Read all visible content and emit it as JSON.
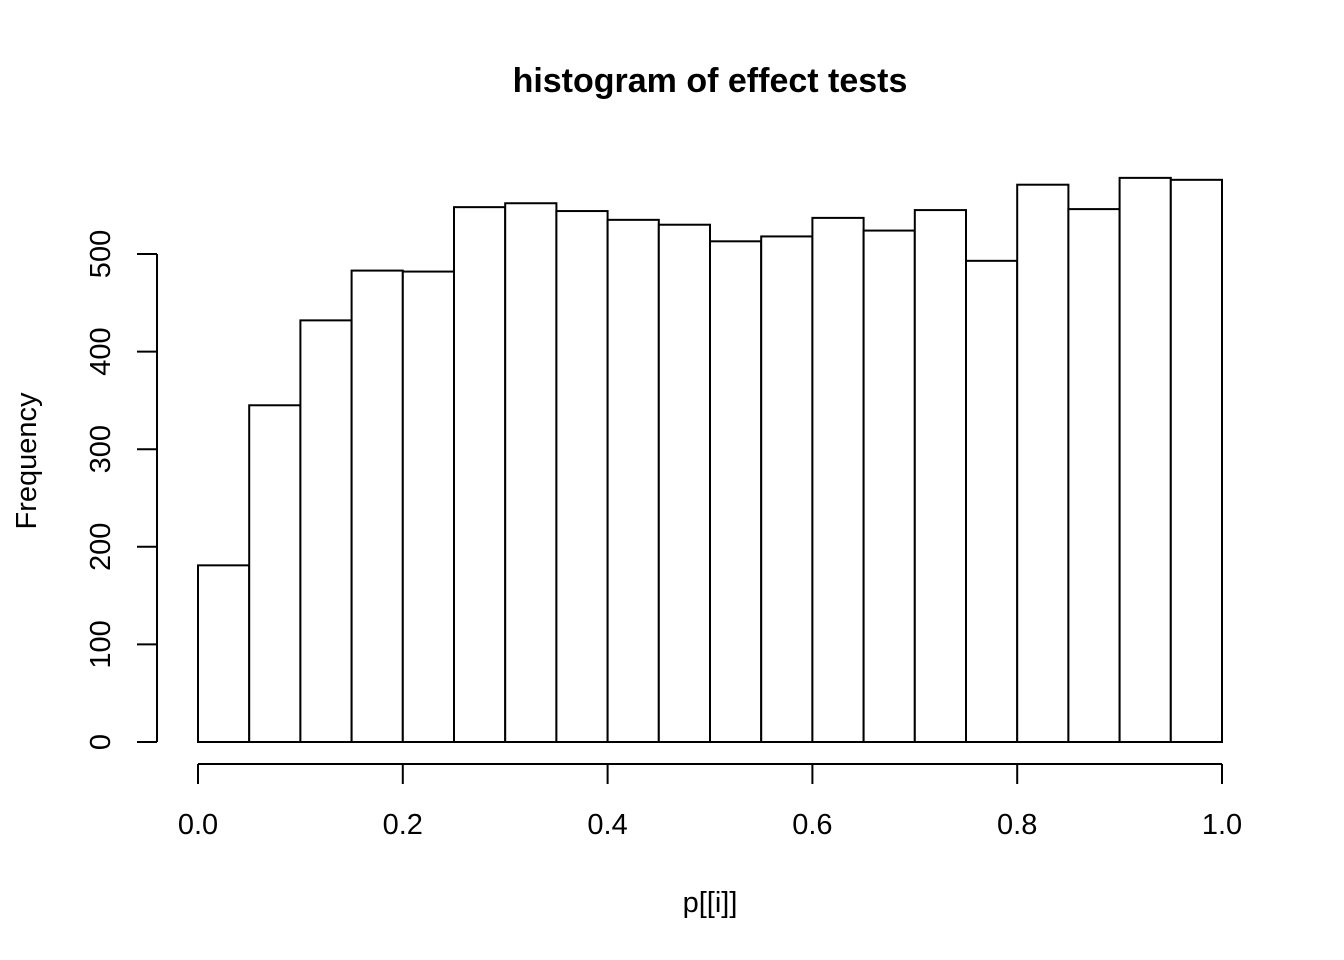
{
  "chart_data": {
    "type": "bar",
    "title": "histogram of effect tests",
    "xlabel": "p[[i]]",
    "ylabel": "Frequency",
    "xlim": [
      0.0,
      1.0
    ],
    "ylim": [
      0,
      500
    ],
    "x_ticks": [
      "0.0",
      "0.2",
      "0.4",
      "0.6",
      "0.8",
      "1.0"
    ],
    "y_ticks": [
      "0",
      "100",
      "200",
      "300",
      "400",
      "500"
    ],
    "bin_width": 0.05,
    "bin_starts": [
      0.0,
      0.05,
      0.1,
      0.15,
      0.2,
      0.25,
      0.3,
      0.35,
      0.4,
      0.45,
      0.5,
      0.55,
      0.6,
      0.65,
      0.7,
      0.75,
      0.8,
      0.85,
      0.9,
      0.95
    ],
    "values": [
      181,
      345,
      432,
      483,
      482,
      548,
      552,
      544,
      535,
      530,
      513,
      518,
      537,
      524,
      545,
      493,
      571,
      546,
      578,
      576
    ],
    "grid": false,
    "colors": {
      "bar_fill": "#ffffff",
      "bar_stroke": "#000000"
    }
  }
}
